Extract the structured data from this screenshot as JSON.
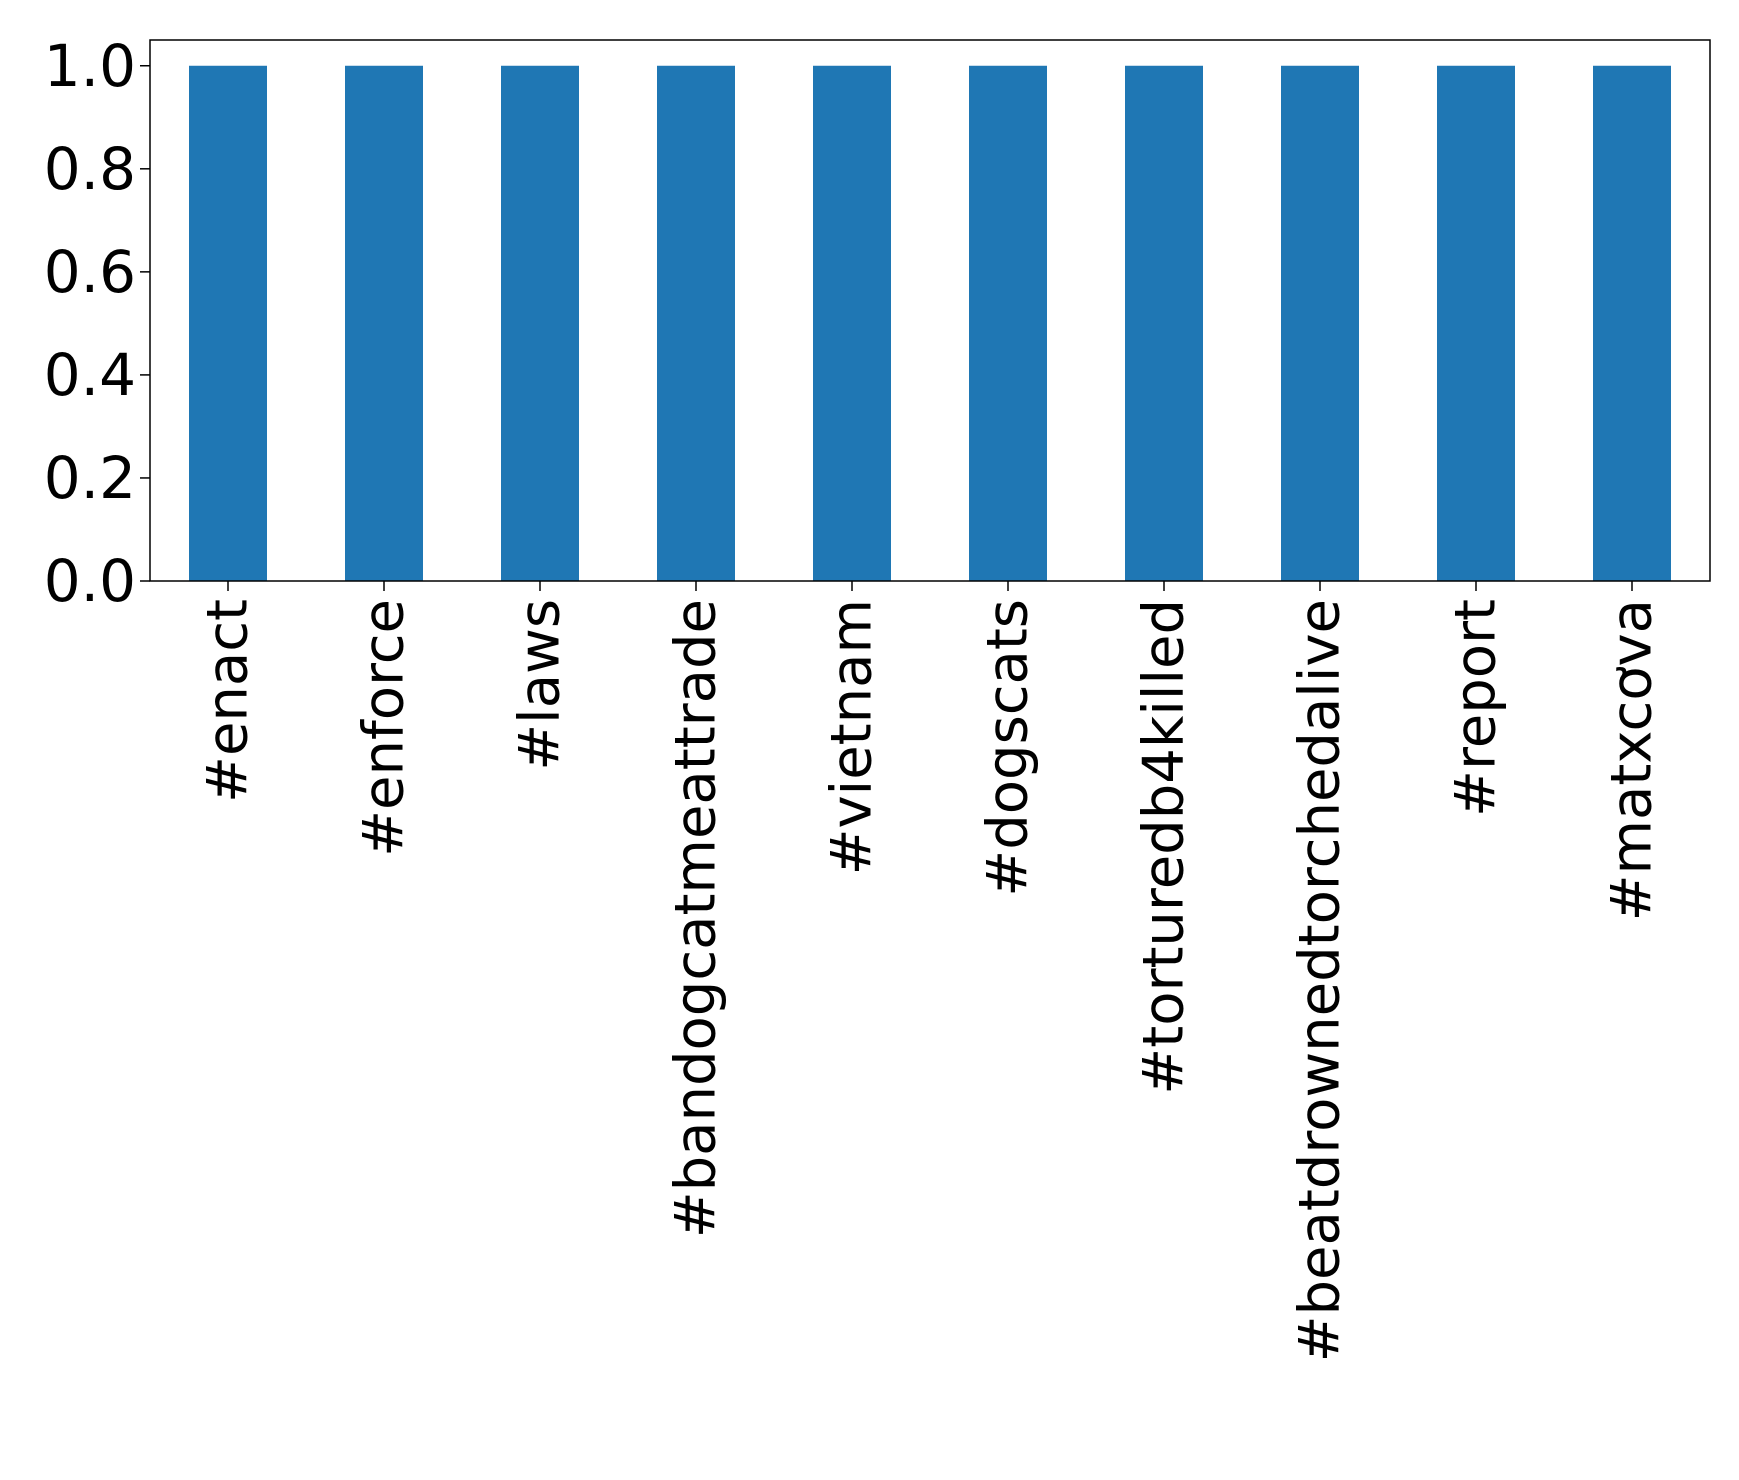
{
  "chart_data": {
    "type": "bar",
    "categories": [
      "#enact",
      "#enforce",
      "#laws",
      "#bandogcatmeattrade",
      "#vietnam",
      "#dogscats",
      "#torturedb4killed",
      "#beatdrownedtorchedalive",
      "#report",
      "#matxcơva"
    ],
    "values": [
      1.0,
      1.0,
      1.0,
      1.0,
      1.0,
      1.0,
      1.0,
      1.0,
      1.0,
      1.0
    ],
    "title": "",
    "xlabel": "",
    "ylabel": "",
    "ylim": [
      0,
      1.05
    ],
    "yticks": [
      "0.0",
      "0.2",
      "0.4",
      "0.6",
      "0.8",
      "1.0"
    ],
    "ytick_values": [
      0,
      0.2,
      0.4,
      0.6,
      0.8,
      1.0
    ],
    "bar_color": "#1f77b4",
    "grid": false,
    "legend": false
  }
}
